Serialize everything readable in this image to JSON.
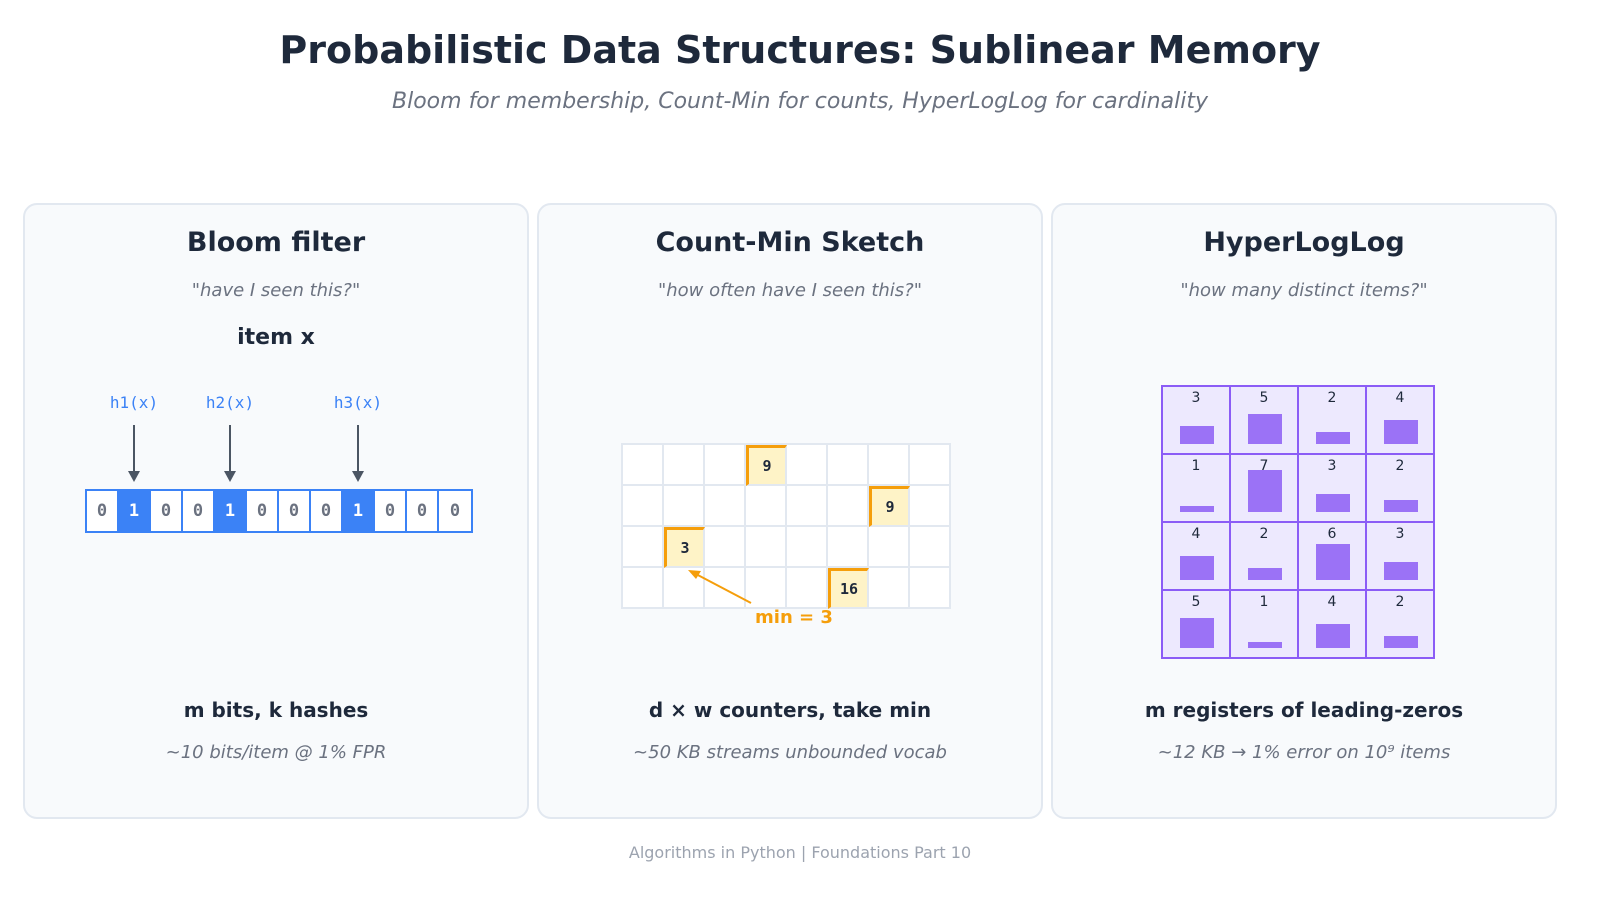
{
  "header": {
    "title": "Probabilistic Data Structures: Sublinear Memory",
    "subtitle": "Bloom for membership, Count-Min for counts, HyperLogLog for cardinality"
  },
  "bloom": {
    "title": "Bloom filter",
    "quote": "\"have I seen this?\"",
    "item_label": "item x",
    "hashes": [
      {
        "label": "h1(x)",
        "bit_index": 1
      },
      {
        "label": "h2(x)",
        "bit_index": 4
      },
      {
        "label": "h3(x)",
        "bit_index": 8
      }
    ],
    "bits": [
      "0",
      "1",
      "0",
      "0",
      "1",
      "0",
      "0",
      "0",
      "1",
      "0",
      "0",
      "0"
    ],
    "footer": "m bits, k hashes",
    "note": "~10 bits/item @ 1% FPR",
    "colors": {
      "accent": "#3b82f6"
    }
  },
  "cms": {
    "title": "Count-Min Sketch",
    "quote": "\"how often have I seen this?\"",
    "rows": 4,
    "cols": 8,
    "hits": [
      {
        "row": 0,
        "col": 3,
        "value": "9"
      },
      {
        "row": 1,
        "col": 6,
        "value": "9"
      },
      {
        "row": 2,
        "col": 1,
        "value": "3"
      },
      {
        "row": 3,
        "col": 5,
        "value": "16"
      }
    ],
    "min_label": "min = 3",
    "footer": "d × w counters, take min",
    "note": "~50 KB streams unbounded vocab",
    "colors": {
      "accent": "#f59e0b",
      "fill": "#fef3c7"
    }
  },
  "hll": {
    "title": "HyperLogLog",
    "quote": "\"how many distinct items?\"",
    "registers": [
      [
        "3",
        "5",
        "2",
        "4"
      ],
      [
        "1",
        "7",
        "3",
        "2"
      ],
      [
        "4",
        "2",
        "6",
        "3"
      ],
      [
        "5",
        "1",
        "4",
        "2"
      ]
    ],
    "max_register": 7,
    "footer": "m registers of leading-zeros",
    "note": "~12 KB → 1% error on 10⁹ items",
    "colors": {
      "accent": "#8b5cf6",
      "bar": "#9b72f6",
      "fill": "#ede9fe"
    }
  },
  "footer": "Algorithms in Python  |  Foundations Part 10"
}
